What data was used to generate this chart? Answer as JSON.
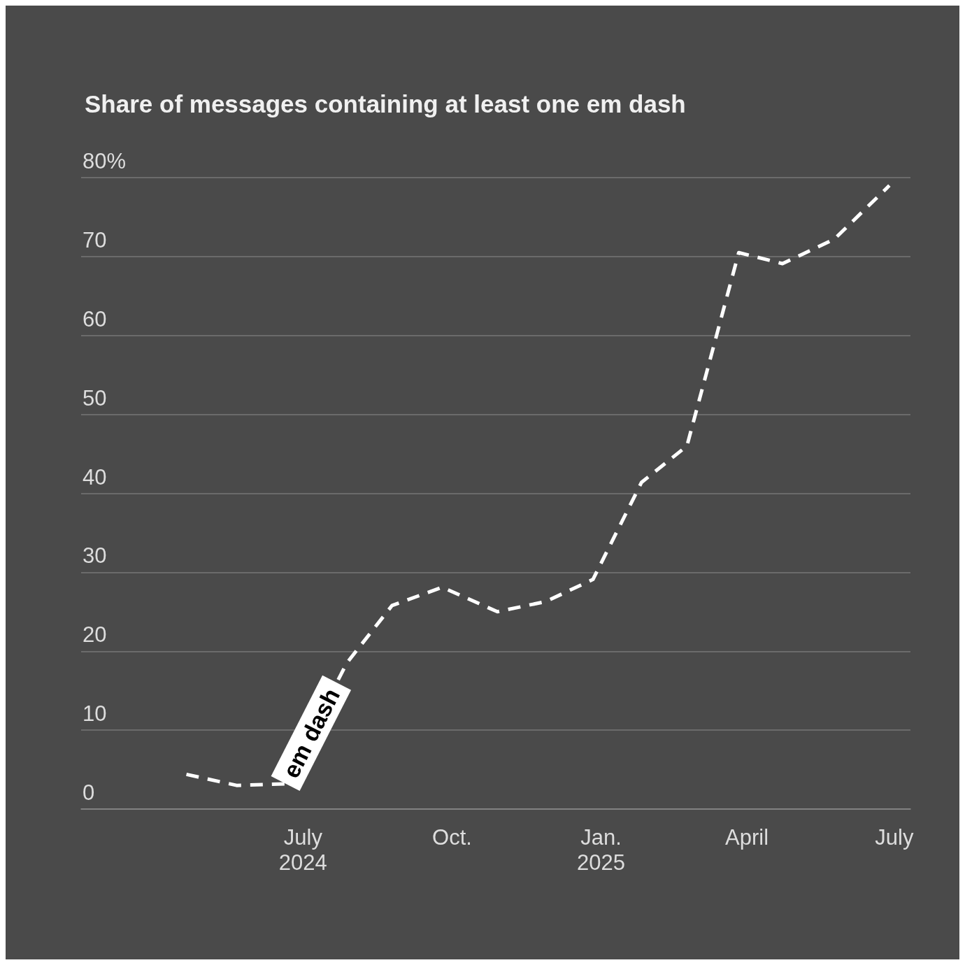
{
  "chart_data": {
    "type": "line",
    "title": "Share of messages containing at least one em dash",
    "x": [
      "2024-04-20",
      "2024-05-21",
      "2024-06-20",
      "2024-07-28",
      "2024-08-25",
      "2024-09-25",
      "2024-10-29",
      "2024-11-28",
      "2024-12-27",
      "2025-01-26",
      "2025-02-23",
      "2025-03-27",
      "2025-04-23",
      "2025-05-25",
      "2025-06-28"
    ],
    "series": [
      {
        "name": "em dash",
        "color": "#ffffff",
        "values": [
          4.4,
          3.0,
          3.2,
          18.5,
          25.8,
          28.1,
          25.0,
          26.3,
          29.1,
          41.4,
          46.0,
          70.5,
          69.1,
          72.2,
          79.0
        ]
      }
    ],
    "xlim": [
      "2024-02-15",
      "2025-07-11"
    ],
    "xticks": [
      {
        "value": "2024-07-01",
        "label": "July\n2024"
      },
      {
        "value": "2024-10-01",
        "label": "Oct."
      },
      {
        "value": "2025-01-01",
        "label": "Jan.\n2025"
      },
      {
        "value": "2025-04-01",
        "label": "April"
      },
      {
        "value": "2025-07-01",
        "label": "July"
      }
    ],
    "ylim": [
      0,
      80
    ],
    "yticks": [
      0,
      10,
      20,
      30,
      40,
      50,
      60,
      70,
      {
        "value": 80,
        "label": "80%"
      }
    ],
    "grid": "y",
    "legend": false,
    "marker": "none",
    "line_style": "dashed"
  }
}
